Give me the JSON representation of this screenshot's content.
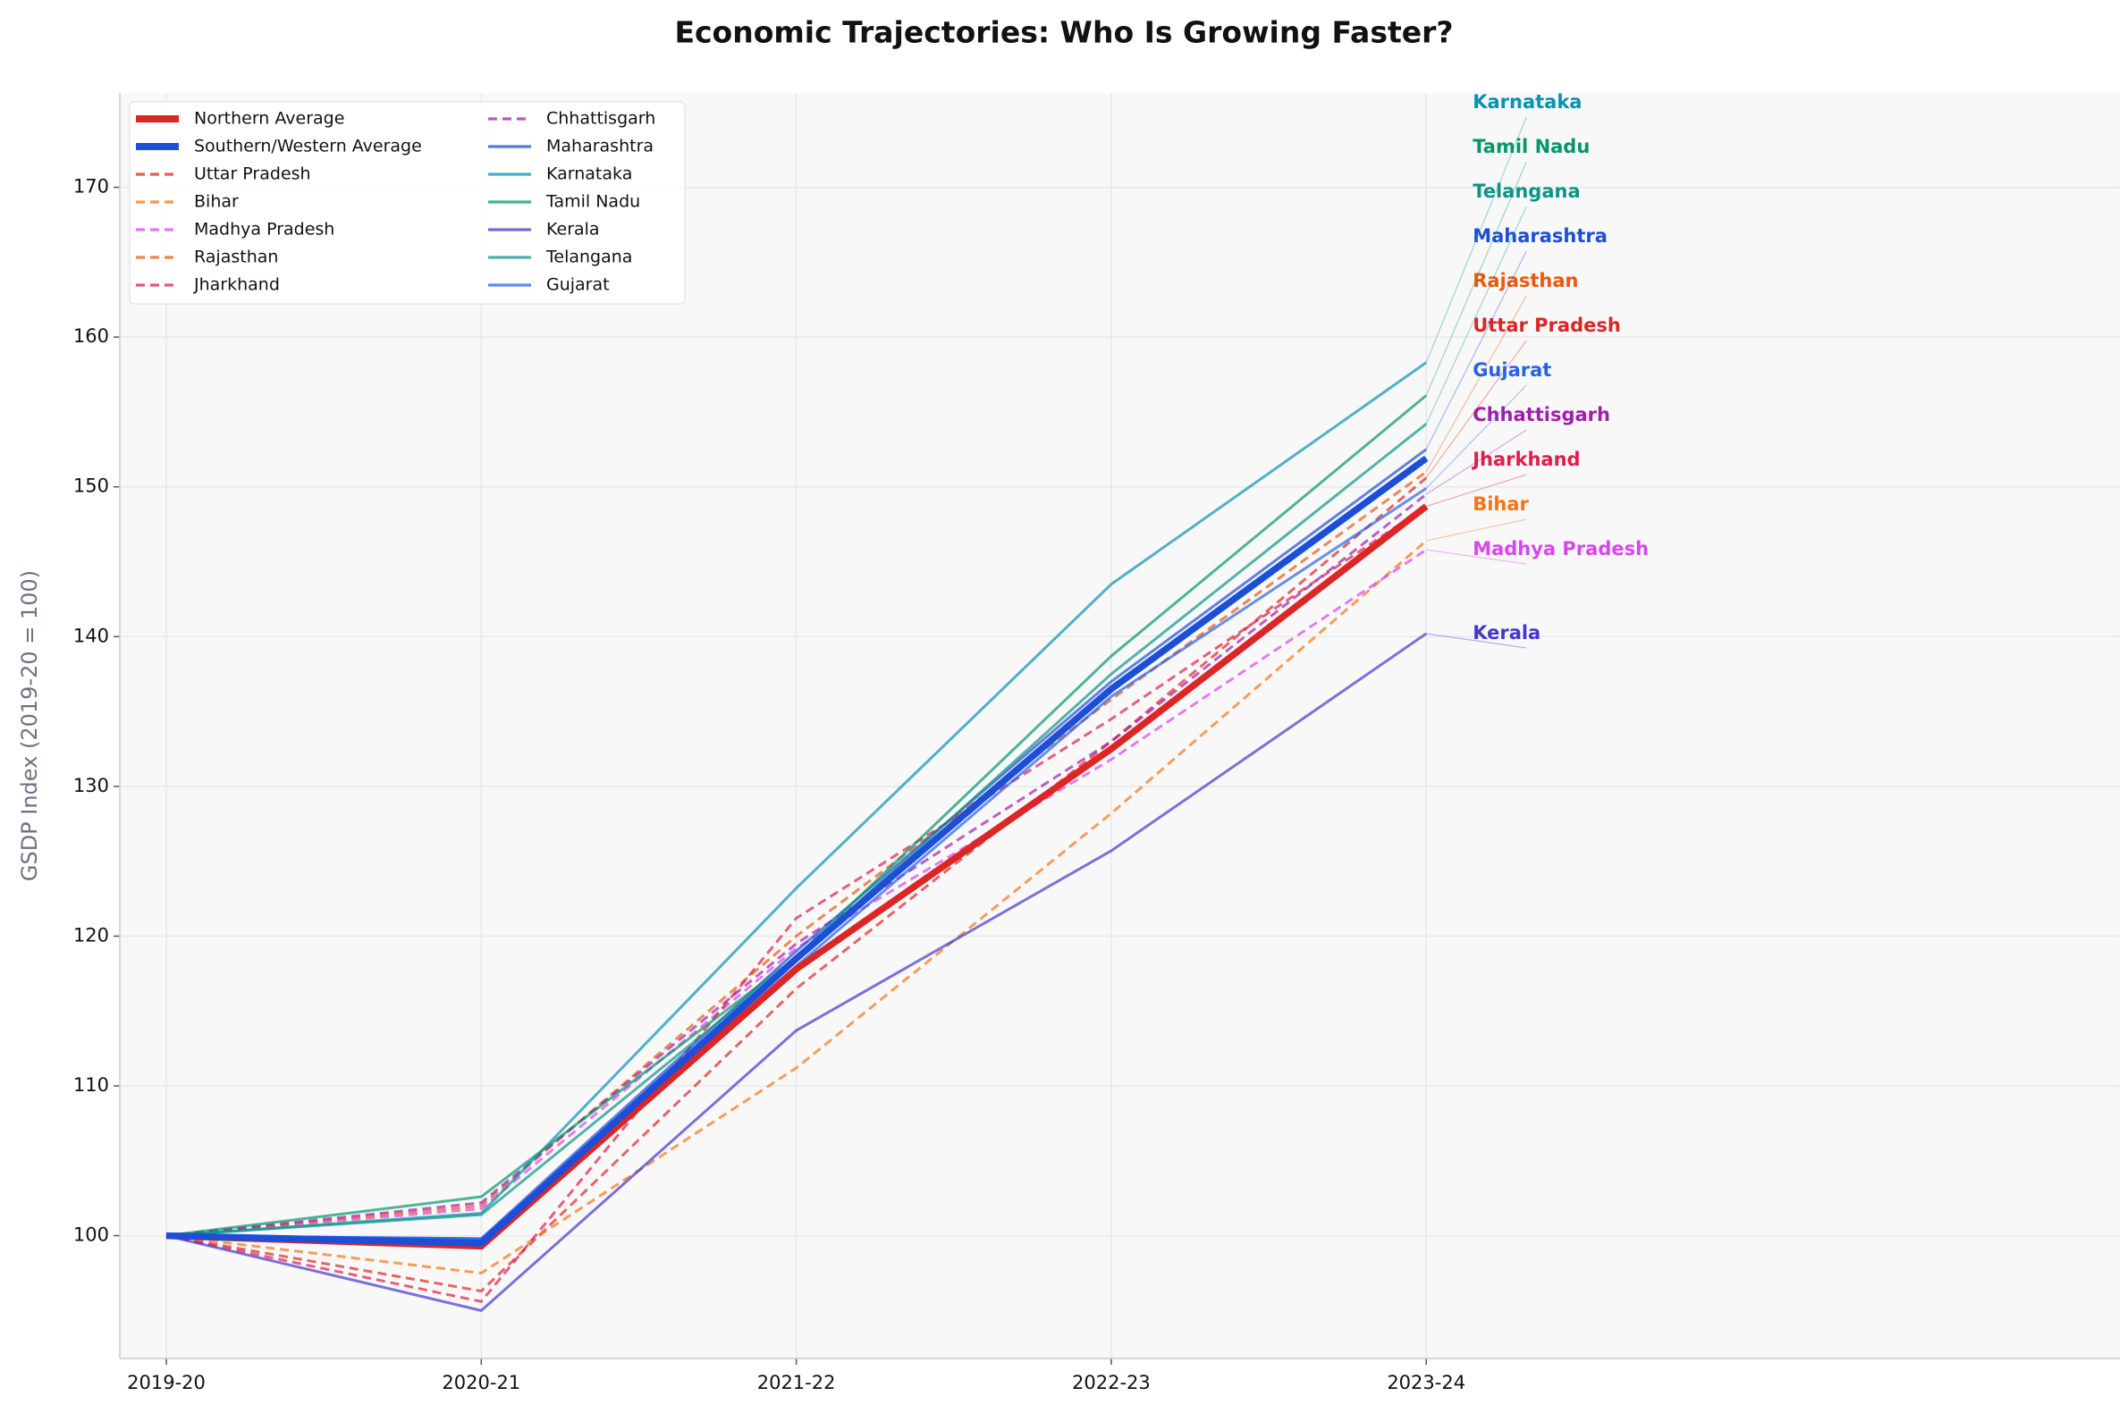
{
  "chart_data": {
    "type": "line",
    "title": "Economic Trajectories: Who Is Growing Faster?",
    "y_label": "GSDP Index (2019-20 = 100)",
    "categories": [
      "2019-20",
      "2020-21",
      "2021-22",
      "2022-23",
      "2023-24"
    ],
    "ylim": [
      91.8,
      176.3
    ],
    "yticks": [
      100,
      110,
      120,
      130,
      140,
      150,
      160,
      170
    ],
    "grid": true,
    "legend": "upper left",
    "series": [
      {
        "name": "Northern Average",
        "color": "#dc2626",
        "linestyle": "solid",
        "linewidth": 5,
        "values": [
          100,
          99.3,
          117.8,
          132.5,
          148.7
        ]
      },
      {
        "name": "Southern/Western Average",
        "color": "#1d4ed8",
        "linestyle": "solid",
        "linewidth": 5,
        "values": [
          100,
          99.5,
          118.5,
          136.5,
          151.9
        ]
      },
      {
        "name": "Uttar Pradesh",
        "color": "#dc2626",
        "linestyle": "dashed",
        "linewidth": 2,
        "values": [
          100,
          96.3,
          116.5,
          133.0,
          150.6
        ]
      },
      {
        "name": "Bihar",
        "color": "#f97316",
        "linestyle": "dashed",
        "linewidth": 2,
        "values": [
          100,
          97.5,
          111.2,
          128.2,
          146.4
        ]
      },
      {
        "name": "Madhya Pradesh",
        "color": "#d946ef",
        "linestyle": "dashed",
        "linewidth": 2,
        "values": [
          100,
          101.8,
          119.2,
          131.8,
          145.8
        ]
      },
      {
        "name": "Rajasthan",
        "color": "#ea580c",
        "linestyle": "dashed",
        "linewidth": 2,
        "values": [
          100,
          102.0,
          120.0,
          135.8,
          151.0
        ]
      },
      {
        "name": "Jharkhand",
        "color": "#e11d48",
        "linestyle": "dashed",
        "linewidth": 2,
        "values": [
          100,
          95.6,
          121.2,
          134.5,
          148.7
        ]
      },
      {
        "name": "Chhattisgarh",
        "color": "#a21caf",
        "linestyle": "dashed",
        "linewidth": 2,
        "values": [
          100,
          102.2,
          119.5,
          133.0,
          149.5
        ]
      },
      {
        "name": "Maharashtra",
        "color": "#1d4ed8",
        "linestyle": "solid",
        "linewidth": 2,
        "values": [
          100,
          99.8,
          119.0,
          137.0,
          152.5
        ]
      },
      {
        "name": "Karnataka",
        "color": "#0891b2",
        "linestyle": "solid",
        "linewidth": 2,
        "values": [
          100,
          101.5,
          123.2,
          143.5,
          158.3
        ]
      },
      {
        "name": "Tamil Nadu",
        "color": "#059669",
        "linestyle": "solid",
        "linewidth": 2,
        "values": [
          100,
          102.6,
          118.6,
          138.7,
          156.1
        ]
      },
      {
        "name": "Kerala",
        "color": "#4338ca",
        "linestyle": "solid",
        "linewidth": 2,
        "values": [
          100,
          95.0,
          113.7,
          125.7,
          140.2
        ]
      },
      {
        "name": "Telangana",
        "color": "#0d9488",
        "linestyle": "solid",
        "linewidth": 2,
        "values": [
          100,
          101.4,
          118.5,
          137.5,
          154.2
        ]
      },
      {
        "name": "Gujarat",
        "color": "#2563eb",
        "linestyle": "solid",
        "linewidth": 2,
        "values": [
          100,
          99.8,
          118.0,
          136.0,
          149.9
        ]
      }
    ]
  }
}
